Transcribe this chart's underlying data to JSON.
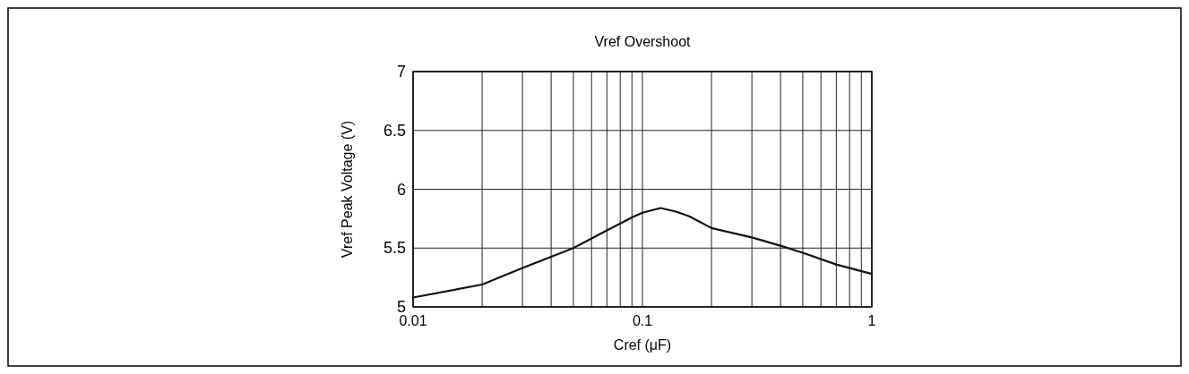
{
  "chart_data": {
    "type": "line",
    "title": "Vref Overshoot",
    "xlabel": "Cref   (μF)",
    "ylabel": "Vref Peak Voltage   (V)",
    "log": "x",
    "grid": true,
    "marker": "none",
    "line_style": "solid",
    "xlim": [
      0.01,
      1
    ],
    "ylim": [
      5,
      7
    ],
    "xticks": [
      0.01,
      {
        "value": 0.02,
        "label": null
      },
      {
        "value": 0.03,
        "label": null
      },
      {
        "value": 0.04,
        "label": null
      },
      {
        "value": 0.05,
        "label": null
      },
      {
        "value": 0.06,
        "label": null
      },
      {
        "value": 0.07,
        "label": null
      },
      {
        "value": 0.08,
        "label": null
      },
      {
        "value": 0.09,
        "label": null
      },
      0.1,
      {
        "value": 0.2,
        "label": null
      },
      {
        "value": 0.3,
        "label": null
      },
      {
        "value": 0.4,
        "label": null
      },
      {
        "value": 0.5,
        "label": null
      },
      {
        "value": 0.6,
        "label": null
      },
      {
        "value": 0.7,
        "label": null
      },
      {
        "value": 0.8,
        "label": null
      },
      {
        "value": 0.9,
        "label": null
      },
      1
    ],
    "yticks": [
      5,
      5.5,
      6,
      6.5,
      7
    ],
    "series": [
      {
        "color": "#111111",
        "x": [
          0.01,
          0.02,
          0.03,
          0.05,
          0.07,
          0.09,
          0.1,
          0.12,
          0.14,
          0.16,
          0.2,
          0.3,
          0.4,
          0.5,
          0.7,
          1
        ],
        "values": [
          5.08,
          5.19,
          5.33,
          5.5,
          5.65,
          5.76,
          5.8,
          5.84,
          5.81,
          5.77,
          5.67,
          5.59,
          5.52,
          5.46,
          5.36,
          5.28
        ]
      }
    ]
  }
}
